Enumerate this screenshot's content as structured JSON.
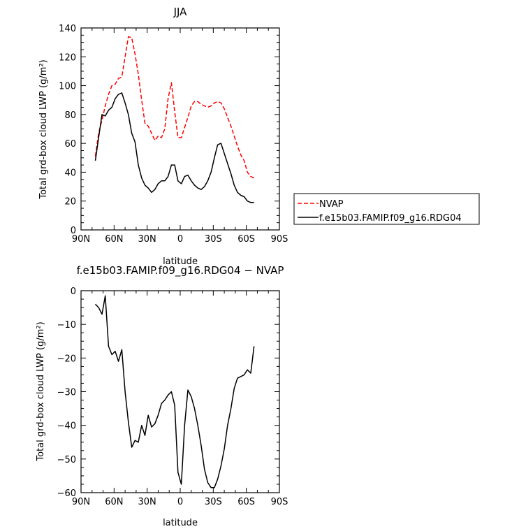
{
  "chart_data": [
    {
      "type": "line",
      "title": "JJA",
      "xlabel": "latitude",
      "ylabel": "Total grd-box cloud LWP (g/m²)",
      "xlim": [
        90,
        -90
      ],
      "ylim": [
        0,
        140
      ],
      "xticks": [
        90,
        60,
        30,
        0,
        -30,
        -60,
        -90
      ],
      "xtick_labels": [
        "90N",
        "60N",
        "30N",
        "0",
        "30S",
        "60S",
        "90S"
      ],
      "yticks": [
        0,
        20,
        40,
        60,
        80,
        100,
        120,
        140
      ],
      "ytick_labels": [
        "0",
        "20",
        "40",
        "60",
        "80",
        "100",
        "120",
        "140"
      ],
      "legend_position": "right, outside plot",
      "series": [
        {
          "name": "NVAP",
          "color": "#ff0000",
          "dash": "dashed",
          "x": [
            77,
            74,
            71,
            68,
            65,
            62,
            59,
            56,
            53,
            50,
            47,
            44,
            41,
            38,
            35,
            32,
            29,
            26,
            23,
            20,
            17,
            14,
            11,
            8,
            5,
            2,
            -1,
            -4,
            -7,
            -10,
            -13,
            -16,
            -19,
            -22,
            -25,
            -28,
            -31,
            -34,
            -37,
            -40,
            -43,
            -46,
            -49,
            -52,
            -55,
            -58,
            -61,
            -64,
            -67
          ],
          "y": [
            51,
            67,
            76,
            86,
            94,
            100,
            101,
            105,
            106,
            120,
            134,
            133,
            122,
            108,
            90,
            74,
            72,
            67,
            62,
            65,
            64,
            70,
            91,
            102,
            82,
            64,
            64,
            71,
            78,
            86,
            89,
            89,
            87,
            86,
            85,
            86,
            88,
            89,
            88,
            84,
            78,
            72,
            65,
            58,
            52,
            48,
            40,
            37,
            36
          ]
        },
        {
          "name": "f.e15b03.FAMIP.f09_g16.RDG04",
          "color": "#000000",
          "dash": "solid",
          "x": [
            77,
            74,
            71,
            68,
            65,
            62,
            59,
            56,
            53,
            50,
            47,
            44,
            41,
            38,
            35,
            32,
            29,
            26,
            23,
            20,
            17,
            14,
            11,
            8,
            5,
            2,
            -1,
            -4,
            -7,
            -10,
            -13,
            -16,
            -19,
            -22,
            -25,
            -28,
            -31,
            -34,
            -37,
            -40,
            -43,
            -46,
            -49,
            -52,
            -55,
            -58,
            -61,
            -64,
            -67
          ],
          "y": [
            48,
            64,
            80,
            79,
            83,
            85,
            91,
            94,
            95,
            88,
            80,
            67,
            61,
            45,
            36,
            31,
            29,
            26,
            28,
            32,
            34,
            34,
            37,
            45,
            45,
            34,
            32,
            37,
            38,
            34,
            31,
            29,
            28,
            30,
            34,
            40,
            50,
            59,
            60,
            53,
            46,
            39,
            31,
            26,
            24,
            23,
            20,
            19,
            19
          ]
        }
      ]
    },
    {
      "type": "line",
      "title": "f.e15b03.FAMIP.f09_g16.RDG04 − NVAP",
      "xlabel": "latitude",
      "ylabel": "Total grd-box cloud LWP (g/m²)",
      "xlim": [
        90,
        -90
      ],
      "ylim": [
        -60,
        0
      ],
      "xticks": [
        90,
        60,
        30,
        0,
        -30,
        -60,
        -90
      ],
      "xtick_labels": [
        "90N",
        "60N",
        "30N",
        "0",
        "30S",
        "60S",
        "90S"
      ],
      "yticks": [
        0,
        -10,
        -20,
        -30,
        -40,
        -50,
        -60
      ],
      "ytick_labels": [
        "0",
        "−10",
        "−20",
        "−30",
        "−40",
        "−50",
        "−60"
      ],
      "series": [
        {
          "color": "#000000",
          "dash": "solid",
          "x": [
            77,
            74,
            71,
            68,
            65,
            62,
            59,
            56,
            53,
            50,
            47,
            44,
            41,
            38,
            35,
            32,
            29,
            26,
            23,
            20,
            17,
            14,
            11,
            8,
            5,
            2,
            -1,
            -4,
            -7,
            -10,
            -13,
            -16,
            -19,
            -22,
            -25,
            -28,
            -31,
            -34,
            -37,
            -40,
            -43,
            -46,
            -49,
            -52,
            -55,
            -58,
            -61,
            -64,
            -67
          ],
          "y": [
            -4,
            -5,
            -7,
            -1.5,
            -16.5,
            -19,
            -18,
            -21,
            -17.5,
            -30,
            -39,
            -46.5,
            -44.5,
            -45,
            -40,
            -43,
            -37,
            -40.5,
            -39.5,
            -37,
            -33.5,
            -32.5,
            -31,
            -30,
            -34,
            -54,
            -57.5,
            -40,
            -29.5,
            -31.5,
            -35,
            -40,
            -46,
            -53,
            -57,
            -58.5,
            -58.5,
            -56,
            -52,
            -47,
            -40,
            -35,
            -29,
            -26,
            -25.5,
            -25,
            -23.5,
            -24.5,
            -16.5
          ]
        }
      ]
    }
  ]
}
